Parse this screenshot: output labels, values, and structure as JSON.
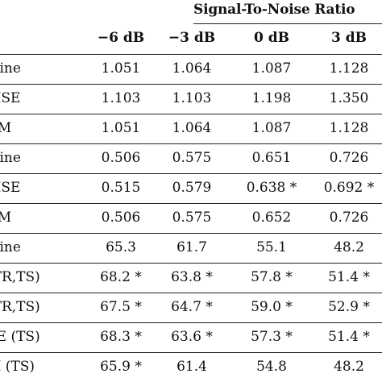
{
  "table": {
    "group_header": "Signal-To-Noise Ratio",
    "columns": [
      "−6 dB",
      "−3 dB",
      "0 dB",
      "3 dB"
    ],
    "rows": [
      {
        "label": "eline",
        "values": [
          "1.051",
          "1.064",
          "1.087",
          "1.128"
        ]
      },
      {
        "label": "MSE",
        "values": [
          "1.103",
          "1.103",
          "1.198",
          "1.350"
        ]
      },
      {
        "label": "RM",
        "values": [
          "1.051",
          "1.064",
          "1.087",
          "1.128"
        ]
      },
      {
        "label": "eline",
        "values": [
          "0.506",
          "0.575",
          "0.651",
          "0.726"
        ]
      },
      {
        "label": "MSE",
        "values": [
          "0.515",
          "0.579",
          "0.638 *",
          "0.692 *"
        ]
      },
      {
        "label": "RM",
        "values": [
          "0.506",
          "0.575",
          "0.652",
          "0.726"
        ]
      },
      {
        "label": "eline",
        "values": [
          "65.3",
          "61.7",
          "55.1",
          "48.2"
        ]
      },
      {
        "label": "(TR,TS)",
        "values": [
          "68.2 *",
          "63.8 *",
          "57.8 *",
          "51.4 *"
        ]
      },
      {
        "label": "(TR,TS)",
        "values": [
          "67.5 *",
          "64.7 *",
          "59.0 *",
          "52.9 *"
        ]
      },
      {
        "label": "SE (TS)",
        "values": [
          "68.3 *",
          "63.6 *",
          "57.3 *",
          "51.4 *"
        ]
      },
      {
        "label": "M (TS)",
        "values": [
          "65.9 *",
          "61.4",
          "54.8",
          "48.2"
        ]
      }
    ]
  }
}
